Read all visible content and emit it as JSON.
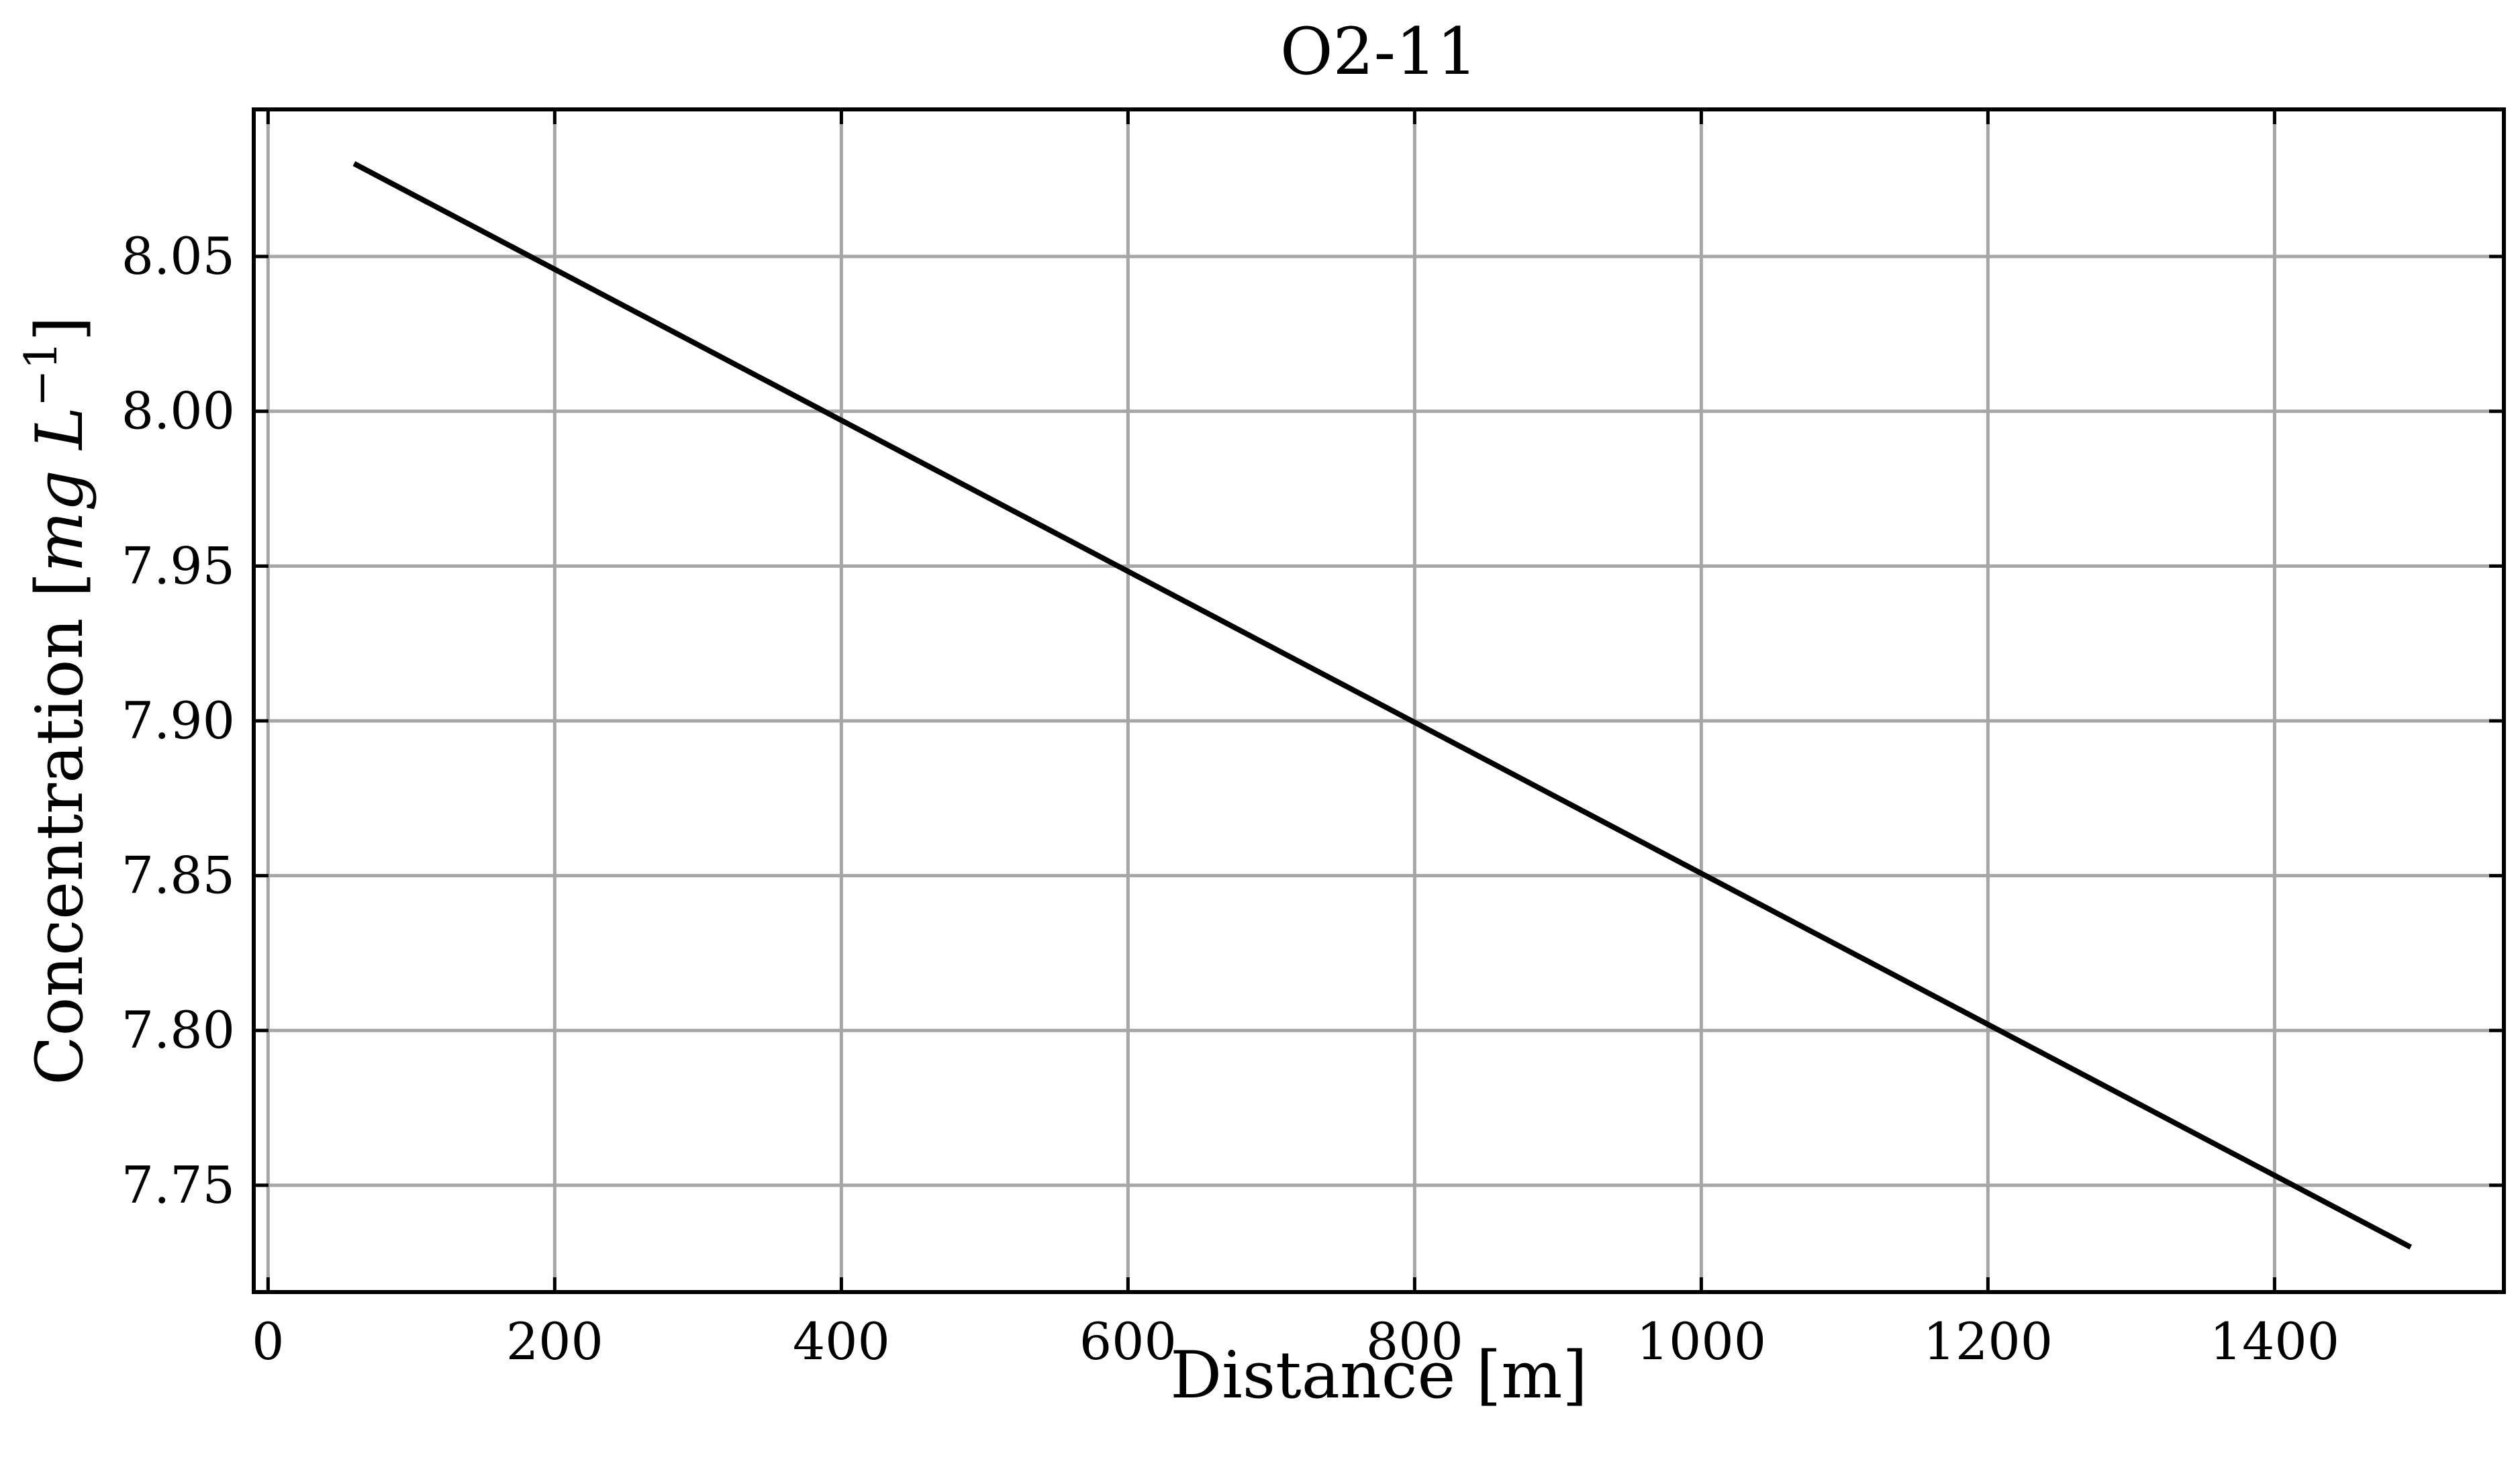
{
  "chart_data": {
    "type": "line",
    "title": "O2-11",
    "xlabel": "Distance [m]",
    "ylabel_text": "Concentration [",
    "ylabel_math_mg": "mg L",
    "ylabel_math_exp": "−1",
    "ylabel_close": "]",
    "xlim": [
      -10,
      1560
    ],
    "ylim": [
      7.7155,
      8.0975
    ],
    "xticks": [
      0,
      200,
      400,
      600,
      800,
      1000,
      1200,
      1400
    ],
    "xtick_labels": [
      "0",
      "200",
      "400",
      "600",
      "800",
      "1000",
      "1200",
      "1400"
    ],
    "yticks": [
      7.75,
      7.8,
      7.85,
      7.9,
      7.95,
      8.0,
      8.05
    ],
    "ytick_labels": [
      "7.75",
      "7.80",
      "7.85",
      "7.90",
      "7.95",
      "8.00",
      "8.05"
    ],
    "grid": true,
    "series": [
      {
        "x": [
          60,
          1495
        ],
        "y": [
          8.08,
          7.73
        ]
      }
    ]
  }
}
